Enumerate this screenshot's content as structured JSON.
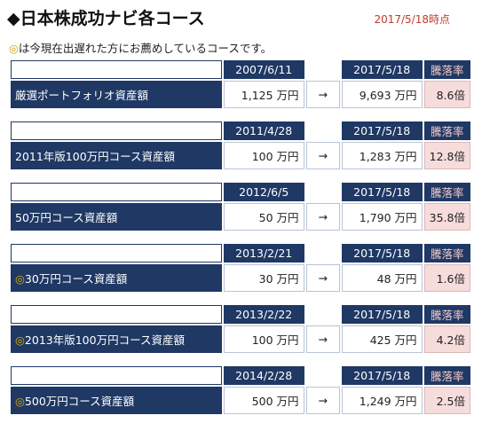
{
  "header": {
    "title": "◆日本株成功ナビ各コース",
    "date": "2017/5/18時点"
  },
  "note": {
    "mark": "◎",
    "text": "は今現在出遅れた方にお薦めしているコースです。"
  },
  "courses": [
    {
      "mark": "",
      "name": "厳選ポートフォリオ資産額",
      "start_date": "2007/6/11",
      "end_date": "2017/5/18",
      "rate_label": "騰落率",
      "start_value": "1,125 万円",
      "arrow": "→",
      "end_value": "9,693 万円",
      "rate": "8.6倍"
    },
    {
      "mark": "",
      "name": "2011年版100万円コース資産額",
      "start_date": "2011/4/28",
      "end_date": "2017/5/18",
      "rate_label": "騰落率",
      "start_value": "100 万円",
      "arrow": "→",
      "end_value": "1,283 万円",
      "rate": "12.8倍"
    },
    {
      "mark": "",
      "name": "50万円コース資産額",
      "start_date": "2012/6/5",
      "end_date": "2017/5/18",
      "rate_label": "騰落率",
      "start_value": "50 万円",
      "arrow": "→",
      "end_value": "1,790 万円",
      "rate": "35.8倍"
    },
    {
      "mark": "◎",
      "name": "30万円コース資産額",
      "start_date": "2013/2/21",
      "end_date": "2017/5/18",
      "rate_label": "騰落率",
      "start_value": "30 万円",
      "arrow": "→",
      "end_value": "48 万円",
      "rate": "1.6倍"
    },
    {
      "mark": "◎",
      "name": "2013年版100万円コース資産額",
      "start_date": "2013/2/22",
      "end_date": "2017/5/18",
      "rate_label": "騰落率",
      "start_value": "100 万円",
      "arrow": "→",
      "end_value": "425 万円",
      "rate": "4.2倍"
    },
    {
      "mark": "◎",
      "name": "500万円コース資産額",
      "start_date": "2014/2/28",
      "end_date": "2017/5/18",
      "rate_label": "騰落率",
      "start_value": "500 万円",
      "arrow": "→",
      "end_value": "1,249 万円",
      "rate": "2.5倍"
    }
  ]
}
